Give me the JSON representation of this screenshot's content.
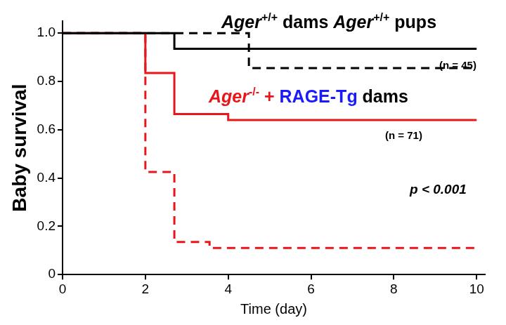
{
  "chart_data": {
    "type": "step",
    "x_label": "Time (day)",
    "y_label": "Baby survival",
    "x": [
      0,
      2,
      2.7,
      3.55,
      4,
      4.5,
      10
    ],
    "series": [
      {
        "color": "#000000",
        "line_style": "solid",
        "values": [
          1,
          1,
          0.935,
          0.935,
          0.935,
          0.935,
          0.935
        ]
      },
      {
        "color": "#000000",
        "line_style": "dashed",
        "values": [
          1,
          1,
          1,
          1,
          1,
          0.855,
          0.855
        ]
      },
      {
        "color": "#e8161b",
        "line_style": "solid",
        "values": [
          1,
          0.835,
          0.665,
          0.665,
          0.64,
          0.64,
          0.64
        ]
      },
      {
        "color": "#e8161b",
        "line_style": "dashed",
        "values": [
          1,
          0.425,
          0.135,
          0.11,
          0.11,
          0.11,
          0.11
        ]
      }
    ],
    "xlim": [
      0,
      10.2
    ],
    "xticks": [
      0,
      2,
      4,
      6,
      8,
      10
    ],
    "ylim": [
      0,
      1.05
    ],
    "yticks": [
      0,
      0.2,
      0.4,
      0.6,
      0.8,
      {
        "value": 1,
        "label": "1.0"
      }
    ],
    "grid": false,
    "annotations": [
      {
        "parts": [
          {
            "text": "Ager+/+ dams Ager+/+ pups",
            "color": "#000000"
          }
        ]
      },
      {
        "parts": [
          {
            "text": "Ager-/- +",
            "color": "#e8161b"
          },
          {
            "text": " RAGE-Tg",
            "color": "#1a1aff"
          },
          {
            "text": " dams",
            "color": "#000000"
          }
        ]
      },
      {
        "text": "(n = 45)"
      },
      {
        "text": "(n = 71)"
      },
      {
        "text": "p < 0.001"
      }
    ]
  }
}
